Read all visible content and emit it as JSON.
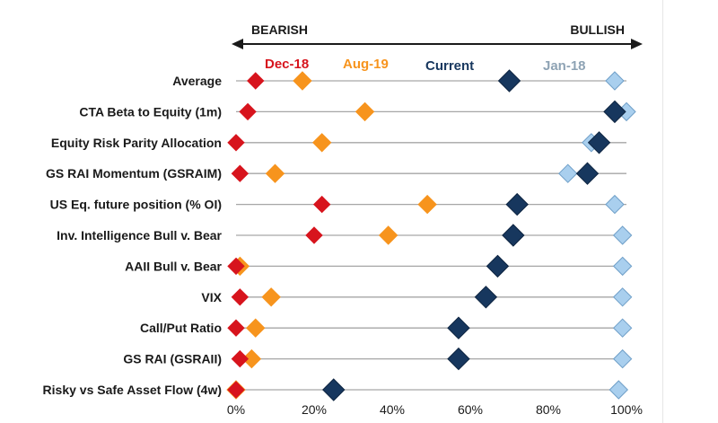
{
  "chart_data": {
    "type": "scatter",
    "header_left": "BEARISH",
    "header_right": "BULLISH",
    "categories": [
      "Average",
      "CTA Beta to Equity (1m)",
      "Equity Risk Parity Allocation",
      "GS RAI Momentum (GSRAIM)",
      "US Eq. future position (% OI)",
      "Inv. Intelligence Bull v. Bear",
      "AAII Bull v. Bear",
      "VIX",
      "Call/Put Ratio",
      "GS RAI (GSRAII)",
      "Risky vs Safe Asset Flow (4w)"
    ],
    "xlim": [
      0,
      100
    ],
    "x_ticks": [
      "0%",
      "20%",
      "40%",
      "60%",
      "80%",
      "100%"
    ],
    "series": [
      {
        "name": "Jan-18",
        "color": "#a9cfee",
        "values": [
          97,
          100,
          91,
          85,
          97,
          99,
          99,
          99,
          99,
          99,
          98
        ]
      },
      {
        "name": "Aug-19",
        "color": "#f7941d",
        "values": [
          17,
          33,
          22,
          10,
          49,
          39,
          1,
          9,
          5,
          4,
          0
        ]
      },
      {
        "name": "Dec-18",
        "color": "#d7141d",
        "values": [
          5,
          3,
          0,
          1,
          22,
          20,
          0,
          1,
          0,
          1,
          0
        ]
      },
      {
        "name": "Current",
        "color": "#17375e",
        "values": [
          70,
          97,
          93,
          90,
          72,
          71,
          67,
          64,
          57,
          57,
          25
        ]
      }
    ]
  }
}
